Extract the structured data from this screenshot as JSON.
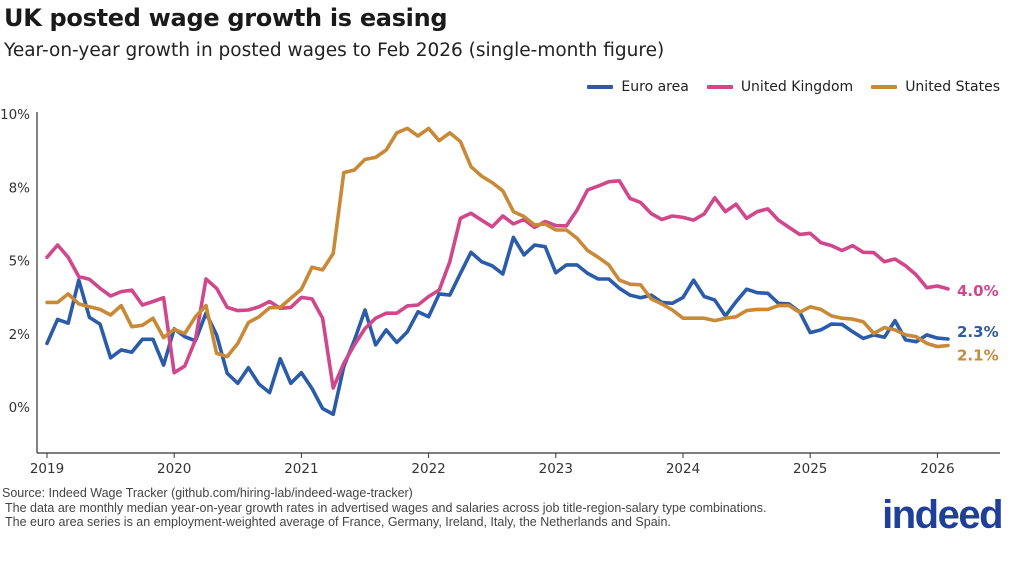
{
  "header": {
    "title": "UK posted wage growth is easing",
    "subtitle": "Year-on-year growth in posted wages to Feb 2026 (single-month figure)"
  },
  "footer": {
    "source": "Source: Indeed Wage Tracker (github.com/hiring-lab/indeed-wage-tracker)",
    "note1": "The data are monthly median year-on-year growth rates in advertised wages and salaries across job title-region-salary type combinations.",
    "note2": "The euro area series is an employment-weighted average of France, Germany, Ireland, Italy, the Netherlands and Spain."
  },
  "logo": "indeed",
  "chart_data": {
    "type": "line",
    "title": "UK posted wage growth is easing",
    "subtitle": "Year-on-year growth in posted wages to Feb 2026 (single-month figure)",
    "xlabel": "",
    "ylabel": "",
    "ylim": [
      -1.5,
      10
    ],
    "yticks": [
      {
        "value": 0,
        "label": "0%"
      },
      {
        "value": 2.5,
        "label": "2%"
      },
      {
        "value": 5,
        "label": "5%"
      },
      {
        "value": 7.5,
        "label": "8%"
      },
      {
        "value": 10,
        "label": "10%"
      }
    ],
    "xticks": [
      "2019",
      "2020",
      "2021",
      "2022",
      "2023",
      "2024",
      "2025",
      "2026"
    ],
    "grid": false,
    "legend": "top-right",
    "x": [
      "2019-01",
      "2019-02",
      "2019-03",
      "2019-04",
      "2019-05",
      "2019-06",
      "2019-07",
      "2019-08",
      "2019-09",
      "2019-10",
      "2019-11",
      "2019-12",
      "2020-01",
      "2020-02",
      "2020-03",
      "2020-04",
      "2020-05",
      "2020-06",
      "2020-07",
      "2020-08",
      "2020-09",
      "2020-10",
      "2020-11",
      "2020-12",
      "2021-01",
      "2021-02",
      "2021-03",
      "2021-04",
      "2021-05",
      "2021-06",
      "2021-07",
      "2021-08",
      "2021-09",
      "2021-10",
      "2021-11",
      "2021-12",
      "2022-01",
      "2022-02",
      "2022-03",
      "2022-04",
      "2022-05",
      "2022-06",
      "2022-07",
      "2022-08",
      "2022-09",
      "2022-10",
      "2022-11",
      "2022-12",
      "2023-01",
      "2023-02",
      "2023-03",
      "2023-04",
      "2023-05",
      "2023-06",
      "2023-07",
      "2023-08",
      "2023-09",
      "2023-10",
      "2023-11",
      "2023-12",
      "2024-01",
      "2024-02",
      "2024-03",
      "2024-04",
      "2024-05",
      "2024-06",
      "2024-07",
      "2024-08",
      "2024-09",
      "2024-10",
      "2024-11",
      "2024-12",
      "2025-01",
      "2025-02",
      "2025-03",
      "2025-04",
      "2025-05",
      "2025-06",
      "2025-07",
      "2025-08",
      "2025-09",
      "2025-10",
      "2025-11",
      "2025-12",
      "2026-01",
      "2026-02"
    ],
    "series": [
      {
        "name": "Euro area",
        "color": "#2a5caa",
        "end_label": "2.3%",
        "values": [
          2.17,
          2.99,
          2.86,
          4.33,
          3.06,
          2.83,
          1.68,
          1.95,
          1.87,
          2.31,
          2.31,
          1.43,
          2.67,
          2.4,
          2.26,
          3.2,
          2.46,
          1.15,
          0.81,
          1.34,
          0.78,
          0.49,
          1.65,
          0.81,
          1.17,
          0.63,
          -0.05,
          -0.25,
          1.38,
          2.28,
          3.31,
          2.12,
          2.63,
          2.2,
          2.57,
          3.25,
          3.08,
          3.86,
          3.82,
          4.56,
          5.28,
          4.96,
          4.82,
          4.54,
          5.79,
          5.19,
          5.53,
          5.47,
          4.58,
          4.85,
          4.85,
          4.56,
          4.37,
          4.37,
          4.05,
          3.82,
          3.73,
          3.82,
          3.57,
          3.54,
          3.74,
          4.33,
          3.77,
          3.65,
          3.11,
          3.59,
          4.02,
          3.9,
          3.88,
          3.54,
          3.52,
          3.25,
          2.54,
          2.63,
          2.83,
          2.82,
          2.57,
          2.34,
          2.46,
          2.38,
          2.95,
          2.29,
          2.23,
          2.46,
          2.35,
          2.32
        ]
      },
      {
        "name": "United Kingdom",
        "color": "#d1478c",
        "end_label": "4.0%",
        "values": [
          5.11,
          5.53,
          5.11,
          4.45,
          4.36,
          4.05,
          3.79,
          3.94,
          3.99,
          3.48,
          3.6,
          3.73,
          1.17,
          1.4,
          2.29,
          4.37,
          4.05,
          3.4,
          3.29,
          3.31,
          3.42,
          3.6,
          3.37,
          3.4,
          3.74,
          3.69,
          3.03,
          0.65,
          1.49,
          2.12,
          2.68,
          3.03,
          3.2,
          3.2,
          3.45,
          3.48,
          3.77,
          3.99,
          4.96,
          6.44,
          6.61,
          6.38,
          6.15,
          6.52,
          6.25,
          6.4,
          6.13,
          6.33,
          6.19,
          6.18,
          6.72,
          7.41,
          7.54,
          7.69,
          7.72,
          7.12,
          6.98,
          6.6,
          6.4,
          6.52,
          6.47,
          6.38,
          6.59,
          7.14,
          6.67,
          6.92,
          6.44,
          6.67,
          6.76,
          6.38,
          6.13,
          5.89,
          5.93,
          5.61,
          5.51,
          5.34,
          5.51,
          5.28,
          5.27,
          4.96,
          5.05,
          4.82,
          4.51,
          4.07,
          4.13,
          4.03
        ]
      },
      {
        "name": "United States",
        "color": "#c88a37",
        "end_label": "2.1%",
        "values": [
          3.57,
          3.57,
          3.86,
          3.52,
          3.42,
          3.33,
          3.14,
          3.46,
          2.74,
          2.79,
          3.03,
          2.37,
          2.65,
          2.51,
          3.08,
          3.46,
          1.83,
          1.72,
          2.17,
          2.88,
          3.08,
          3.39,
          3.4,
          3.71,
          4.02,
          4.77,
          4.68,
          5.24,
          8.0,
          8.09,
          8.45,
          8.52,
          8.77,
          9.36,
          9.51,
          9.25,
          9.51,
          9.09,
          9.36,
          9.06,
          8.2,
          7.88,
          7.66,
          7.38,
          6.67,
          6.5,
          6.21,
          6.25,
          6.04,
          6.04,
          5.76,
          5.34,
          5.11,
          4.85,
          4.33,
          4.19,
          4.17,
          3.69,
          3.52,
          3.31,
          3.03,
          3.03,
          3.03,
          2.95,
          3.03,
          3.08,
          3.29,
          3.33,
          3.33,
          3.46,
          3.46,
          3.23,
          3.42,
          3.33,
          3.11,
          3.03,
          3.0,
          2.91,
          2.51,
          2.71,
          2.63,
          2.46,
          2.4,
          2.17,
          2.06,
          2.1
        ]
      }
    ]
  }
}
